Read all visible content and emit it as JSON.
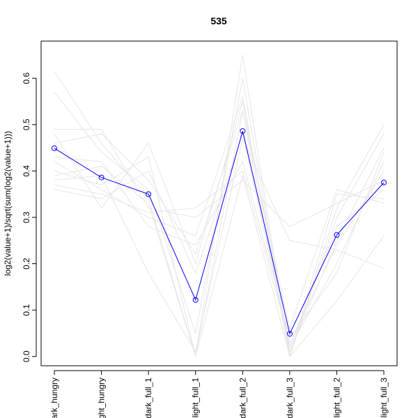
{
  "chart_data": {
    "type": "line",
    "title": "535",
    "xlabel": "",
    "ylabel": "log2(value+1)/sqrt(sum(log2(value+1)))",
    "categories": [
      "dark_hungry",
      "light_hungry",
      "dark_full_1",
      "light_full_1",
      "dark_full_2",
      "dark_full_3",
      "light_full_2",
      "light_full_3"
    ],
    "ylim": [
      -0.02,
      0.68
    ],
    "yticks": [
      0.0,
      0.1,
      0.2,
      0.3,
      0.4,
      0.5,
      0.6
    ],
    "ytick_labels": [
      "0.0",
      "0.1",
      "0.2",
      "0.3",
      "0.4",
      "0.5",
      "0.6"
    ],
    "grid": false,
    "highlight_series": {
      "color": "#0000ff",
      "values": [
        0.449,
        0.386,
        0.35,
        0.122,
        0.486,
        0.049,
        0.262,
        0.375
      ]
    },
    "background_series": {
      "color": "#e6e6e6",
      "lines": [
        [
          0.615,
          0.46,
          0.34,
          0.0,
          0.65,
          0.0,
          0.3,
          0.48
        ],
        [
          0.57,
          0.44,
          0.36,
          0.05,
          0.6,
          0.01,
          0.25,
          0.45
        ],
        [
          0.49,
          0.49,
          0.32,
          0.3,
          0.38,
          0.28,
          0.33,
          0.38
        ],
        [
          0.48,
          0.32,
          0.46,
          0.2,
          0.55,
          0.02,
          0.2,
          0.42
        ],
        [
          0.46,
          0.48,
          0.38,
          0.22,
          0.53,
          0.06,
          0.36,
          0.33
        ],
        [
          0.42,
          0.36,
          0.3,
          0.26,
          0.56,
          0.0,
          0.32,
          0.5
        ],
        [
          0.4,
          0.37,
          0.43,
          0.0,
          0.39,
          0.0,
          0.12,
          0.26
        ],
        [
          0.38,
          0.39,
          0.18,
          0.01,
          0.47,
          0.25,
          0.23,
          0.19
        ],
        [
          0.36,
          0.34,
          0.4,
          0.18,
          0.48,
          0.02,
          0.28,
          0.36
        ],
        [
          0.43,
          0.42,
          0.28,
          0.24,
          0.42,
          0.04,
          0.18,
          0.44
        ],
        [
          0.39,
          0.41,
          0.33,
          0.0,
          0.53,
          0.0,
          0.35,
          0.34
        ],
        [
          0.37,
          0.35,
          0.31,
          0.32,
          0.4,
          0.03,
          0.24,
          0.4
        ]
      ]
    }
  }
}
